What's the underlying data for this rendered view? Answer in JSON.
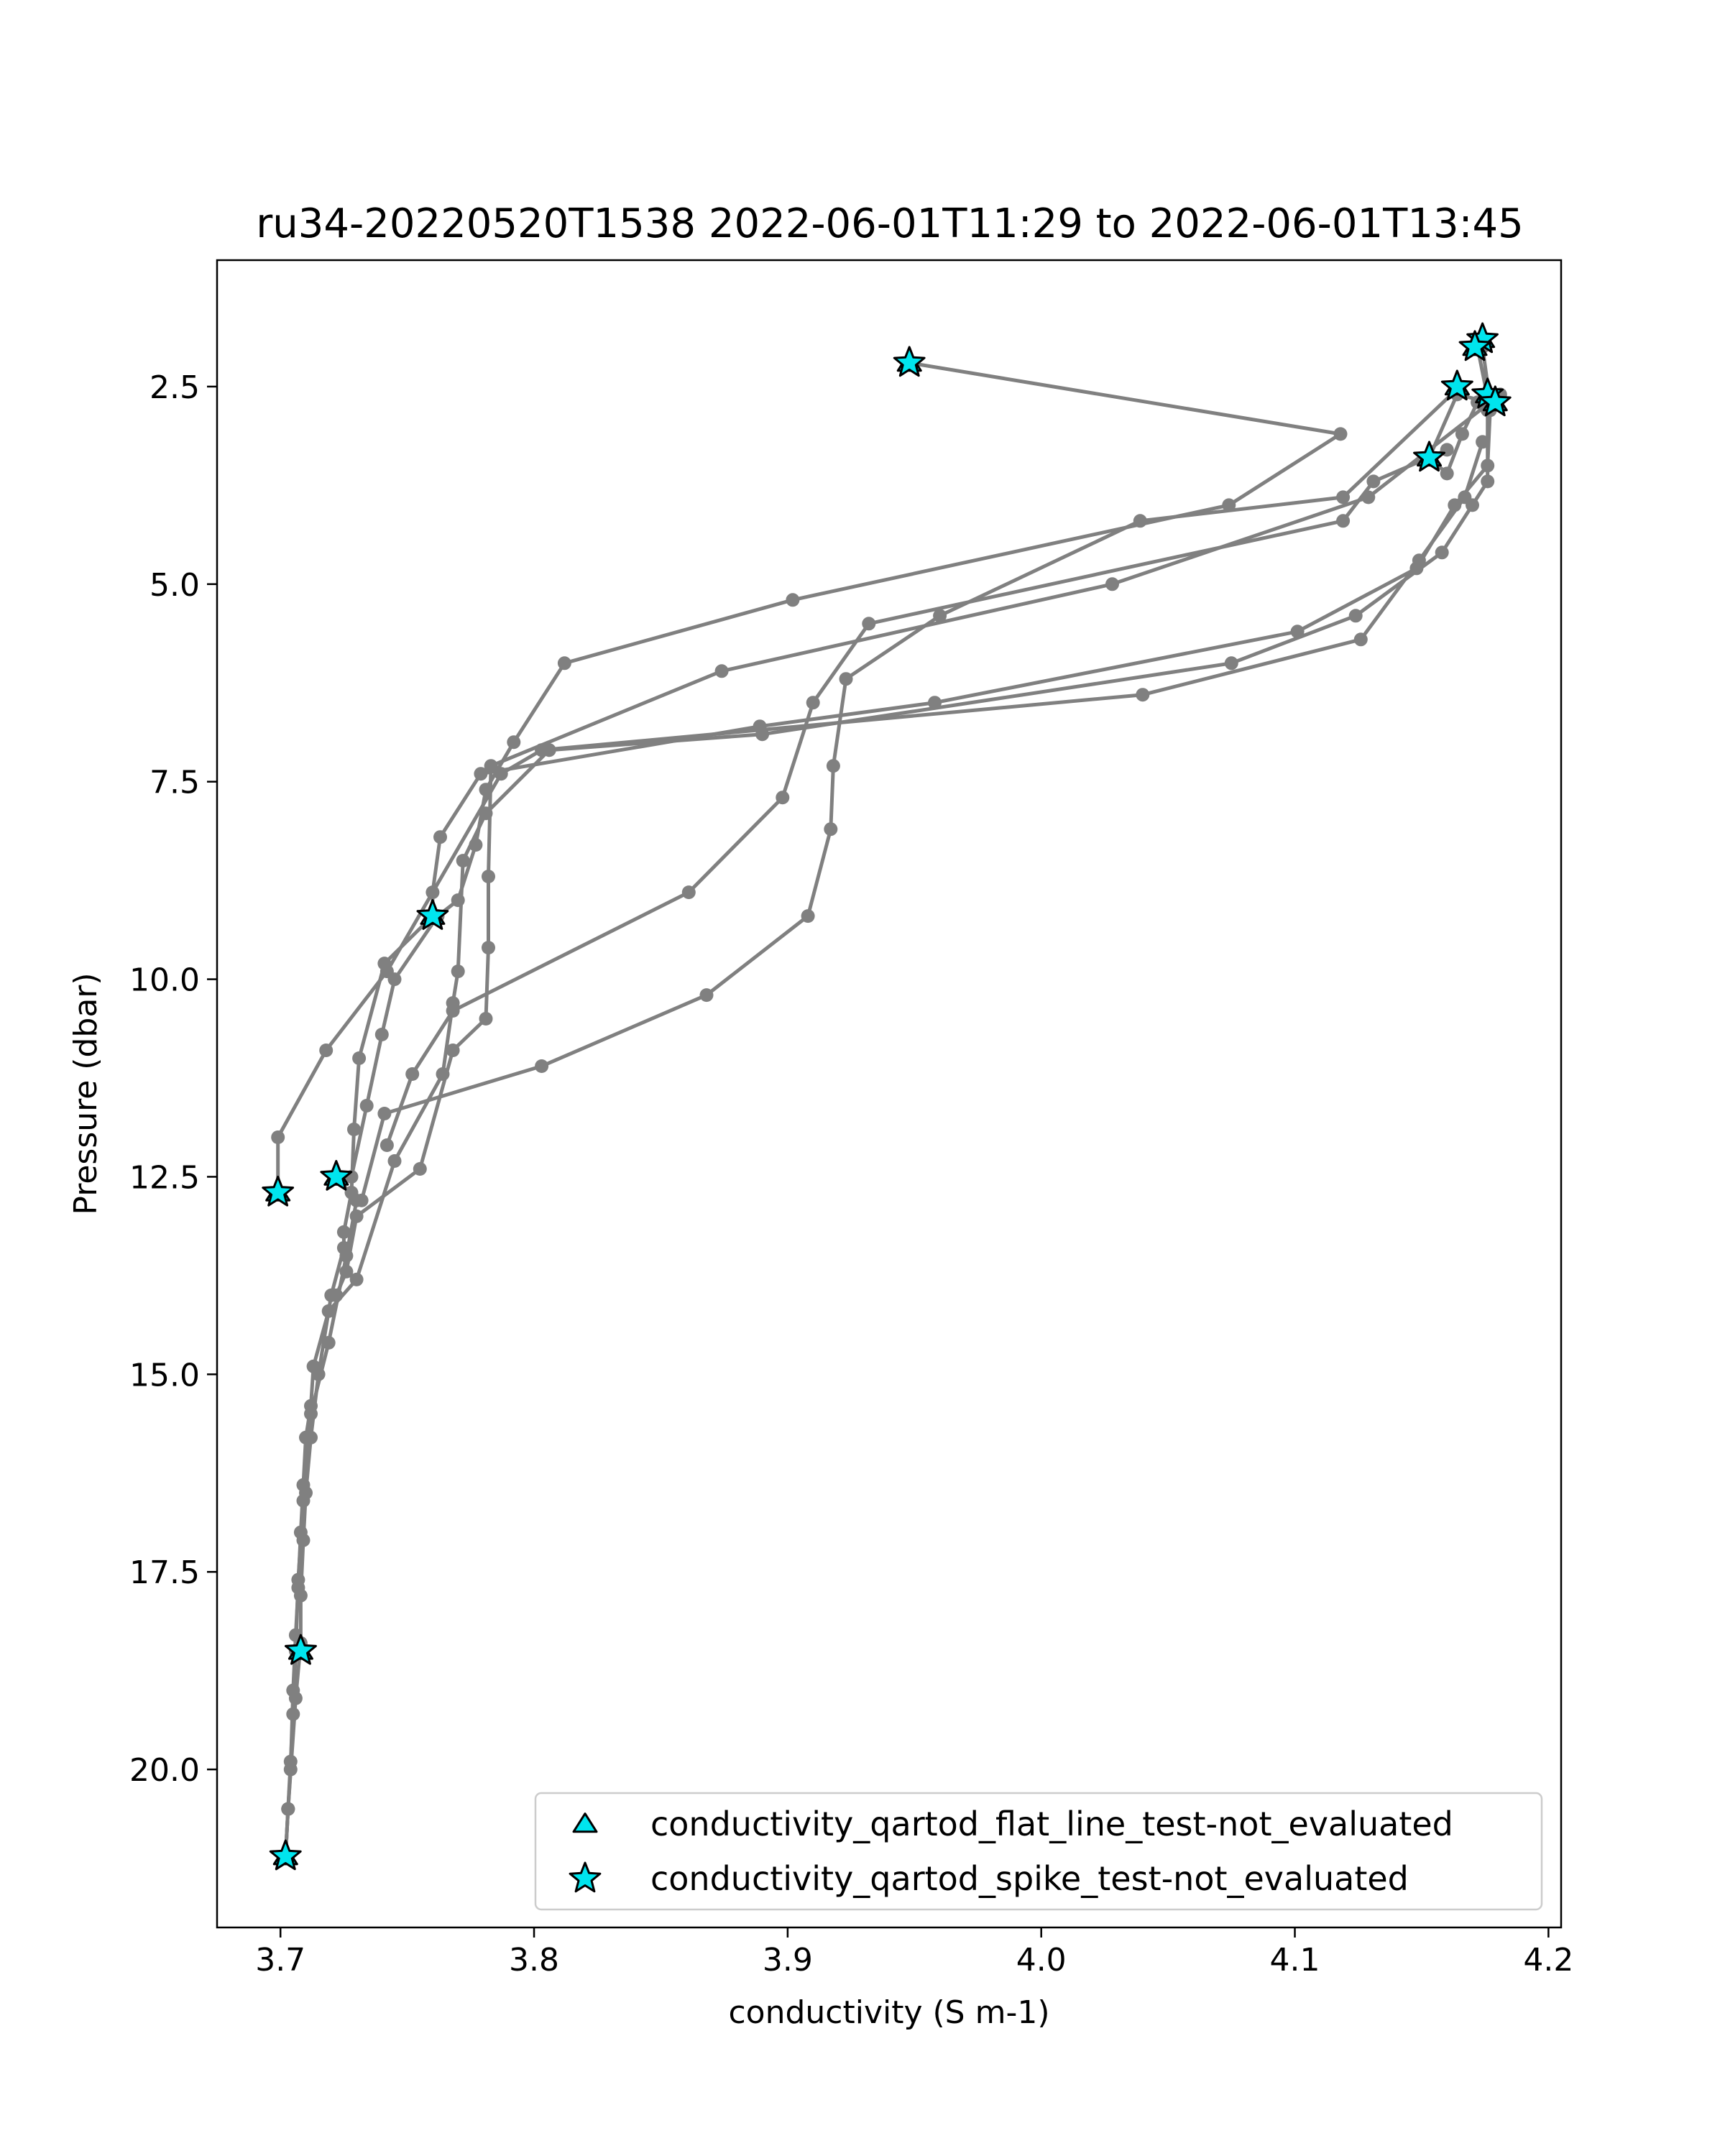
{
  "chart_data": {
    "type": "line",
    "title": "ru34-20220520T1538 2022-06-01T11:29 to 2022-06-01T13:45",
    "xlabel": "conductivity (S m-1)",
    "ylabel": "Pressure (dbar)",
    "xlim": [
      3.675,
      4.205
    ],
    "ylim": [
      22.0,
      0.9
    ],
    "y_inverted": true,
    "grid": false,
    "xticks": [
      3.7,
      3.8,
      3.9,
      4.0,
      4.1,
      4.2
    ],
    "xtick_labels": [
      "3.7",
      "3.8",
      "3.9",
      "4.0",
      "4.1",
      "4.2"
    ],
    "yticks": [
      2.5,
      5.0,
      7.5,
      10.0,
      12.5,
      15.0,
      17.5,
      20.0
    ],
    "ytick_labels": [
      "2.5",
      "5.0",
      "7.5",
      "10.0",
      "12.5",
      "15.0",
      "17.5",
      "20.0"
    ],
    "line_color": "#808080",
    "marker_fill": "#00e5ee",
    "marker_edge": "#000000",
    "legend": {
      "position": "lower-right",
      "entries": [
        {
          "label": "conductivity_qartod_flat_line_test-not_evaluated",
          "marker": "triangle"
        },
        {
          "label": "conductivity_qartod_spike_test-not_evaluated",
          "marker": "star"
        }
      ]
    },
    "profiles": [
      {
        "points": [
          [
            3.948,
            2.2
          ],
          [
            4.118,
            3.1
          ],
          [
            4.074,
            4.0
          ],
          [
            3.902,
            5.2
          ],
          [
            3.812,
            6.0
          ],
          [
            3.792,
            7.0
          ],
          [
            3.781,
            7.6
          ],
          [
            3.777,
            8.3
          ],
          [
            3.77,
            9.0
          ],
          [
            3.762,
            9.2
          ],
          [
            3.745,
            10.0
          ],
          [
            3.74,
            10.7
          ],
          [
            3.734,
            11.6
          ],
          [
            3.728,
            12.5
          ],
          [
            3.722,
            12.5
          ]
        ]
      },
      {
        "points": [
          [
            3.722,
            12.5
          ],
          [
            3.73,
            12.8
          ],
          [
            3.726,
            13.5
          ],
          [
            3.719,
            14.6
          ],
          [
            3.712,
            15.5
          ],
          [
            3.709,
            16.6
          ],
          [
            3.707,
            17.6
          ],
          [
            3.706,
            18.5
          ],
          [
            3.705,
            19.3
          ],
          [
            3.704,
            19.9
          ],
          [
            3.703,
            20.5
          ],
          [
            3.702,
            21.1
          ]
        ]
      },
      {
        "points": [
          [
            3.702,
            21.1
          ],
          [
            3.703,
            20.5
          ],
          [
            3.704,
            20.0
          ],
          [
            3.705,
            19.0
          ],
          [
            3.706,
            18.3
          ],
          [
            3.707,
            17.7
          ],
          [
            3.708,
            17.0
          ],
          [
            3.709,
            16.4
          ],
          [
            3.71,
            15.8
          ],
          [
            3.712,
            15.4
          ],
          [
            3.713,
            14.9
          ],
          [
            3.719,
            14.2
          ],
          [
            3.73,
            13.8
          ],
          [
            3.745,
            12.3
          ],
          [
            3.764,
            11.2
          ],
          [
            3.768,
            10.3
          ],
          [
            3.77,
            9.9
          ],
          [
            3.772,
            8.5
          ],
          [
            3.781,
            7.9
          ],
          [
            3.806,
            7.1
          ],
          [
            3.89,
            6.9
          ],
          [
            4.075,
            6.0
          ],
          [
            4.124,
            5.4
          ],
          [
            4.158,
            4.6
          ],
          [
            4.17,
            4.0
          ],
          [
            4.176,
            3.7
          ],
          [
            4.176,
            2.8
          ]
        ]
      },
      {
        "points": [
          [
            4.176,
            2.8
          ],
          [
            4.172,
            2.7
          ],
          [
            4.166,
            3.1
          ],
          [
            4.16,
            3.6
          ],
          [
            4.153,
            3.4
          ],
          [
            4.164,
            2.6
          ],
          [
            4.177,
            2.7
          ],
          [
            4.174,
            2.0
          ],
          [
            4.175,
            1.9
          ],
          [
            4.172,
            2.0
          ],
          [
            4.177,
            2.8
          ],
          [
            4.176,
            3.5
          ],
          [
            4.163,
            4.0
          ],
          [
            4.148,
            4.8
          ],
          [
            4.101,
            5.6
          ],
          [
            3.958,
            6.5
          ],
          [
            3.889,
            6.8
          ],
          [
            3.779,
            7.4
          ],
          [
            3.763,
            8.2
          ],
          [
            3.76,
            8.9
          ],
          [
            3.76,
            9.2
          ],
          [
            3.741,
            9.8
          ],
          [
            3.731,
            11.0
          ],
          [
            3.729,
            11.9
          ],
          [
            3.728,
            12.7
          ],
          [
            3.725,
            13.2
          ],
          [
            3.725,
            13.4
          ],
          [
            3.72,
            14.0
          ],
          [
            3.715,
            15.0
          ],
          [
            3.712,
            15.8
          ],
          [
            3.71,
            16.5
          ],
          [
            3.709,
            17.1
          ],
          [
            3.708,
            17.8
          ],
          [
            3.708,
            18.4
          ],
          [
            3.706,
            19.1
          ],
          [
            3.703,
            20.5
          ],
          [
            3.702,
            21.1
          ]
        ]
      },
      {
        "points": [
          [
            3.699,
            12.7
          ],
          [
            3.699,
            12.0
          ],
          [
            3.718,
            10.9
          ],
          [
            3.742,
            9.9
          ],
          [
            3.787,
            7.4
          ],
          [
            3.803,
            7.1
          ],
          [
            4.04,
            6.4
          ],
          [
            4.126,
            5.7
          ],
          [
            4.149,
            4.7
          ],
          [
            4.167,
            3.9
          ],
          [
            4.174,
            3.2
          ]
        ]
      },
      {
        "points": [
          [
            4.181,
            2.6
          ],
          [
            4.129,
            3.9
          ],
          [
            4.028,
            5.0
          ],
          [
            3.874,
            6.1
          ],
          [
            3.783,
            7.3
          ],
          [
            3.782,
            8.7
          ],
          [
            3.782,
            9.6
          ],
          [
            3.781,
            10.5
          ],
          [
            3.768,
            10.9
          ],
          [
            3.755,
            12.4
          ],
          [
            3.73,
            13.0
          ],
          [
            3.726,
            13.7
          ],
          [
            3.722,
            14.0
          ]
        ]
      },
      {
        "points": [
          [
            4.165,
            2.5
          ],
          [
            4.119,
            3.9
          ],
          [
            4.039,
            4.2
          ],
          [
            3.96,
            5.4
          ],
          [
            3.923,
            6.2
          ],
          [
            3.918,
            7.3
          ],
          [
            3.917,
            8.1
          ],
          [
            3.908,
            9.2
          ],
          [
            3.868,
            10.2
          ],
          [
            3.803,
            11.1
          ],
          [
            3.741,
            11.7
          ],
          [
            3.732,
            12.8
          ]
        ]
      },
      {
        "points": [
          [
            4.16,
            3.3
          ],
          [
            4.131,
            3.7
          ],
          [
            4.119,
            4.2
          ],
          [
            3.932,
            5.5
          ],
          [
            3.91,
            6.5
          ],
          [
            3.898,
            7.7
          ],
          [
            3.861,
            8.9
          ],
          [
            3.768,
            10.4
          ],
          [
            3.752,
            11.2
          ],
          [
            3.742,
            12.1
          ]
        ]
      }
    ],
    "spike_markers": [
      [
        3.948,
        2.2
      ],
      [
        4.174,
        1.9
      ],
      [
        4.171,
        2.0
      ],
      [
        4.164,
        2.5
      ],
      [
        4.176,
        2.6
      ],
      [
        4.179,
        2.7
      ],
      [
        4.153,
        3.4
      ],
      [
        3.76,
        9.2
      ],
      [
        3.722,
        12.5
      ],
      [
        3.699,
        12.7
      ],
      [
        3.708,
        18.5
      ],
      [
        3.702,
        21.1
      ]
    ],
    "flat_line_markers": [
      [
        3.948,
        2.2
      ],
      [
        4.174,
        1.9
      ],
      [
        4.171,
        2.0
      ],
      [
        4.164,
        2.5
      ],
      [
        4.176,
        2.6
      ],
      [
        4.179,
        2.7
      ],
      [
        4.153,
        3.4
      ],
      [
        3.76,
        9.2
      ],
      [
        3.722,
        12.5
      ],
      [
        3.699,
        12.7
      ],
      [
        3.708,
        18.5
      ],
      [
        3.702,
        21.1
      ]
    ]
  }
}
